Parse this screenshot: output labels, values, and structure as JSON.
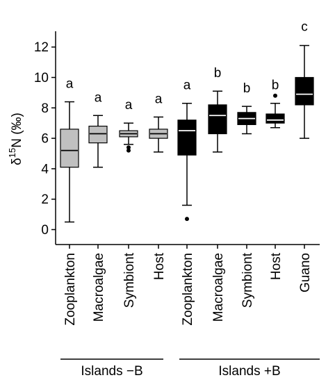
{
  "chart_data": {
    "type": "box",
    "ylabel": "δ15N (‰)",
    "ylabel_parts": {
      "symbol": "δ",
      "superscript": "15",
      "rest": "N (‰)"
    },
    "ylim": [
      -1,
      13
    ],
    "yticks": [
      "0",
      "2",
      "4",
      "6",
      "8",
      "10",
      "12"
    ],
    "ytick_values": [
      0,
      2,
      4,
      6,
      8,
      10,
      12
    ],
    "grid": false,
    "categories": [
      "Zooplankton",
      "Macroalgae",
      "Symbiont",
      "Host",
      "Zooplankton",
      "Macroalgae",
      "Symbiont",
      "Host",
      "Guano"
    ],
    "groups": [
      {
        "label": "Islands −B",
        "start": 0,
        "end": 3
      },
      {
        "label": "Islands +B",
        "start": 4,
        "end": 8
      }
    ],
    "colors": {
      "minusB_fill": "#c0c0c0",
      "plusB_fill": "#000000",
      "minusB_median": "#000000",
      "plusB_median": "#ffffff"
    },
    "boxes": [
      {
        "category": "Zooplankton",
        "group": "Islands −B",
        "min": 0.5,
        "q1": 4.1,
        "median": 5.2,
        "q3": 6.6,
        "max": 8.4,
        "outliers": [],
        "letter": "a"
      },
      {
        "category": "Macroalgae",
        "group": "Islands −B",
        "min": 4.1,
        "q1": 5.7,
        "median": 6.3,
        "q3": 6.8,
        "max": 7.5,
        "outliers": [],
        "letter": "a"
      },
      {
        "category": "Symbiont",
        "group": "Islands −B",
        "min": 5.6,
        "q1": 6.1,
        "median": 6.3,
        "q3": 6.5,
        "max": 7.0,
        "outliers": [
          5.4,
          5.2
        ],
        "letter": "a"
      },
      {
        "category": "Host",
        "group": "Islands −B",
        "min": 5.1,
        "q1": 6.0,
        "median": 6.3,
        "q3": 6.6,
        "max": 7.4,
        "outliers": [],
        "letter": "a"
      },
      {
        "category": "Zooplankton",
        "group": "Islands +B",
        "min": 1.6,
        "q1": 4.9,
        "median": 6.5,
        "q3": 7.2,
        "max": 8.3,
        "outliers": [
          0.7
        ],
        "letter": "a"
      },
      {
        "category": "Macroalgae",
        "group": "Islands +B",
        "min": 5.1,
        "q1": 6.3,
        "median": 7.5,
        "q3": 8.2,
        "max": 9.1,
        "outliers": [],
        "letter": "b"
      },
      {
        "category": "Symbiont",
        "group": "Islands +B",
        "min": 6.3,
        "q1": 6.9,
        "median": 7.3,
        "q3": 7.7,
        "max": 8.1,
        "outliers": [],
        "letter": "b"
      },
      {
        "category": "Host",
        "group": "Islands +B",
        "min": 6.7,
        "q1": 7.0,
        "median": 7.2,
        "q3": 7.6,
        "max": 8.3,
        "outliers": [
          8.8
        ],
        "letter": "b"
      },
      {
        "category": "Guano",
        "group": "Islands +B",
        "min": 6.0,
        "q1": 8.2,
        "median": 8.9,
        "q3": 10.0,
        "max": 12.1,
        "outliers": [],
        "letter": "c"
      }
    ]
  }
}
